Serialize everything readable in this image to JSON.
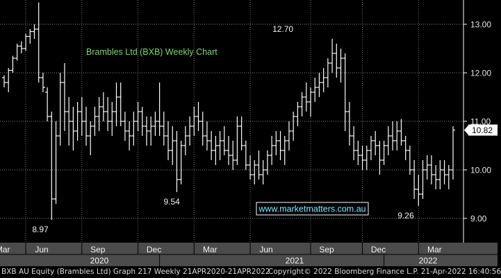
{
  "chart_data": {
    "type": "ohlc",
    "title": "Brambles Ltd (BXB) Weekly Chart",
    "ylim": [
      8.5,
      13.5
    ],
    "y_ticks": [
      9.0,
      10.0,
      11.0,
      12.0,
      13.0
    ],
    "y_tick_labels": [
      "9.00",
      "10.00",
      "11.00",
      "12.00",
      "13.00"
    ],
    "last_price": "10.82",
    "watermark": "www.marketmatters.com.au",
    "annotations": [
      {
        "label": "8.97",
        "value": 8.97
      },
      {
        "label": "9.54",
        "value": 9.54
      },
      {
        "label": "12.70",
        "value": 12.7
      },
      {
        "label": "9.26",
        "value": 9.26
      }
    ],
    "x_month_labels": [
      "Mar",
      "Jun",
      "Sep",
      "Dec",
      "Mar",
      "Jun",
      "Sep",
      "Dec",
      "Mar"
    ],
    "x_year_labels": [
      "2020",
      "2021",
      "2022"
    ],
    "x": [
      "2020-04-24",
      "2020-05-01",
      "2020-05-08",
      "2020-05-15",
      "2020-05-22",
      "2020-05-29",
      "2020-06-05",
      "2020-06-12",
      "2020-06-19",
      "2020-06-26",
      "2020-07-03",
      "2020-07-10",
      "2020-07-17",
      "2020-07-24",
      "2020-07-31",
      "2020-08-07",
      "2020-08-14",
      "2020-08-21",
      "2020-08-28",
      "2020-09-04",
      "2020-09-11",
      "2020-09-18",
      "2020-09-25",
      "2020-10-02",
      "2020-10-09",
      "2020-10-16",
      "2020-10-23",
      "2020-10-30",
      "2020-11-06",
      "2020-11-13",
      "2020-11-20",
      "2020-11-27",
      "2020-12-04",
      "2020-12-11",
      "2020-12-18",
      "2020-12-25",
      "2021-01-01",
      "2021-01-08",
      "2021-01-15",
      "2021-01-22",
      "2021-01-29",
      "2021-02-05",
      "2021-02-12",
      "2021-02-19",
      "2021-02-26",
      "2021-03-05",
      "2021-03-12",
      "2021-03-19",
      "2021-03-26",
      "2021-04-02",
      "2021-04-09",
      "2021-04-16",
      "2021-04-23",
      "2021-04-30",
      "2021-05-07",
      "2021-05-14",
      "2021-05-21",
      "2021-05-28",
      "2021-06-04",
      "2021-06-11",
      "2021-06-18",
      "2021-06-25",
      "2021-07-02",
      "2021-07-09",
      "2021-07-16",
      "2021-07-23",
      "2021-07-30",
      "2021-08-06",
      "2021-08-13",
      "2021-08-20",
      "2021-08-27",
      "2021-09-03",
      "2021-09-10",
      "2021-09-17",
      "2021-09-24",
      "2021-10-01",
      "2021-10-08",
      "2021-10-15",
      "2021-10-22",
      "2021-10-29",
      "2021-11-05",
      "2021-11-12",
      "2021-11-19",
      "2021-11-26",
      "2021-12-03",
      "2021-12-10",
      "2021-12-17",
      "2021-12-24",
      "2021-12-31",
      "2022-01-07",
      "2022-01-14",
      "2022-01-21",
      "2022-01-28",
      "2022-02-04",
      "2022-02-11",
      "2022-02-18",
      "2022-02-25",
      "2022-03-04",
      "2022-03-11",
      "2022-03-18",
      "2022-03-25",
      "2022-04-01",
      "2022-04-08",
      "2022-04-15",
      "2022-04-21"
    ],
    "ohlc": [
      [
        11.9,
        11.95,
        11.7,
        11.8
      ],
      [
        11.8,
        12.1,
        11.6,
        12.05
      ],
      [
        12.05,
        12.35,
        12.0,
        12.3
      ],
      [
        12.3,
        12.6,
        12.25,
        12.55
      ],
      [
        12.55,
        12.65,
        12.4,
        12.5
      ],
      [
        12.5,
        12.8,
        12.45,
        12.75
      ],
      [
        12.75,
        12.9,
        12.6,
        12.85
      ],
      [
        12.85,
        13.0,
        12.7,
        12.9
      ],
      [
        12.9,
        13.45,
        11.8,
        11.9
      ],
      [
        11.9,
        12.0,
        11.6,
        11.7
      ],
      [
        11.6,
        11.7,
        11.0,
        11.1
      ],
      [
        11.1,
        11.2,
        8.97,
        9.4
      ],
      [
        9.4,
        11.0,
        9.3,
        10.7
      ],
      [
        10.7,
        12.0,
        10.5,
        11.8
      ],
      [
        11.8,
        12.2,
        10.8,
        11.2
      ],
      [
        11.2,
        11.5,
        10.5,
        11.0
      ],
      [
        11.0,
        11.3,
        10.4,
        10.8
      ],
      [
        10.8,
        11.4,
        10.6,
        11.2
      ],
      [
        11.2,
        11.5,
        10.7,
        11.0
      ],
      [
        11.0,
        11.3,
        10.5,
        10.7
      ],
      [
        10.7,
        11.0,
        10.3,
        10.9
      ],
      [
        10.9,
        11.3,
        10.7,
        11.1
      ],
      [
        11.1,
        11.5,
        10.8,
        11.3
      ],
      [
        11.3,
        11.6,
        11.0,
        11.2
      ],
      [
        11.2,
        11.5,
        10.8,
        11.0
      ],
      [
        11.0,
        11.4,
        10.7,
        11.2
      ],
      [
        11.2,
        11.8,
        10.9,
        11.5
      ],
      [
        11.5,
        11.8,
        10.9,
        11.0
      ],
      [
        11.0,
        11.2,
        10.6,
        10.8
      ],
      [
        10.8,
        11.0,
        10.4,
        10.7
      ],
      [
        10.7,
        11.2,
        10.5,
        11.0
      ],
      [
        11.0,
        11.4,
        10.8,
        11.2
      ],
      [
        11.2,
        11.3,
        10.7,
        10.9
      ],
      [
        10.9,
        11.1,
        10.5,
        10.8
      ],
      [
        10.8,
        11.1,
        10.5,
        10.9
      ],
      [
        10.9,
        11.2,
        10.7,
        11.0
      ],
      [
        11.0,
        11.8,
        10.7,
        10.9
      ],
      [
        10.9,
        11.2,
        10.5,
        10.7
      ],
      [
        10.7,
        11.0,
        10.2,
        10.4
      ],
      [
        10.4,
        10.9,
        10.1,
        10.6
      ],
      [
        10.6,
        10.8,
        9.54,
        9.8
      ],
      [
        9.8,
        10.6,
        9.7,
        10.5
      ],
      [
        10.5,
        10.9,
        10.3,
        10.7
      ],
      [
        10.7,
        11.1,
        10.5,
        10.9
      ],
      [
        10.9,
        11.3,
        10.7,
        11.1
      ],
      [
        11.1,
        11.4,
        10.8,
        11.0
      ],
      [
        11.0,
        11.2,
        10.5,
        10.7
      ],
      [
        10.7,
        11.0,
        10.4,
        10.6
      ],
      [
        10.6,
        10.8,
        10.2,
        10.4
      ],
      [
        10.4,
        10.7,
        10.1,
        10.5
      ],
      [
        10.5,
        10.8,
        10.2,
        10.6
      ],
      [
        10.6,
        10.9,
        10.3,
        10.4
      ],
      [
        10.4,
        10.7,
        10.1,
        10.3
      ],
      [
        10.3,
        10.6,
        10.0,
        10.2
      ],
      [
        10.2,
        11.1,
        10.1,
        10.9
      ],
      [
        10.9,
        11.1,
        10.4,
        10.5
      ],
      [
        10.5,
        10.6,
        10.0,
        10.1
      ],
      [
        10.1,
        10.3,
        9.8,
        9.9
      ],
      [
        9.9,
        10.2,
        9.7,
        10.1
      ],
      [
        10.1,
        10.4,
        9.8,
        9.9
      ],
      [
        9.9,
        10.2,
        9.7,
        10.0
      ],
      [
        10.0,
        10.4,
        9.9,
        10.3
      ],
      [
        10.3,
        10.7,
        10.1,
        10.5
      ],
      [
        10.5,
        10.8,
        10.3,
        10.6
      ],
      [
        10.6,
        10.8,
        10.2,
        10.4
      ],
      [
        10.4,
        10.7,
        10.1,
        10.6
      ],
      [
        10.6,
        11.0,
        10.4,
        10.8
      ],
      [
        10.8,
        11.2,
        10.6,
        11.1
      ],
      [
        11.1,
        11.4,
        10.9,
        11.3
      ],
      [
        11.3,
        11.6,
        11.1,
        11.5
      ],
      [
        11.5,
        11.8,
        11.2,
        11.4
      ],
      [
        11.4,
        11.7,
        11.1,
        11.6
      ],
      [
        11.6,
        11.9,
        11.4,
        11.7
      ],
      [
        11.7,
        12.0,
        11.5,
        11.8
      ],
      [
        11.8,
        12.1,
        11.6,
        11.9
      ],
      [
        11.9,
        12.3,
        11.7,
        12.2
      ],
      [
        12.2,
        12.7,
        12.0,
        12.4
      ],
      [
        12.4,
        12.6,
        11.9,
        12.1
      ],
      [
        12.1,
        12.5,
        11.8,
        12.3
      ],
      [
        12.3,
        12.4,
        10.8,
        11.2
      ],
      [
        11.2,
        11.4,
        10.5,
        10.7
      ],
      [
        10.7,
        10.9,
        10.2,
        10.4
      ],
      [
        10.4,
        10.6,
        10.1,
        10.3
      ],
      [
        10.3,
        10.5,
        10.0,
        10.2
      ],
      [
        10.2,
        10.5,
        10.0,
        10.4
      ],
      [
        10.4,
        10.7,
        10.2,
        10.6
      ],
      [
        10.6,
        10.8,
        10.3,
        10.5
      ],
      [
        10.5,
        10.6,
        9.9,
        10.2
      ],
      [
        10.2,
        10.6,
        10.1,
        10.5
      ],
      [
        10.5,
        10.9,
        10.3,
        10.7
      ],
      [
        10.7,
        11.0,
        10.4,
        10.6
      ],
      [
        10.6,
        11.0,
        10.4,
        10.8
      ],
      [
        10.8,
        11.05,
        10.5,
        10.6
      ],
      [
        10.6,
        10.7,
        10.2,
        10.4
      ],
      [
        10.4,
        10.5,
        9.9,
        10.0
      ],
      [
        10.0,
        10.2,
        9.4,
        9.6
      ],
      [
        9.6,
        9.9,
        9.26,
        9.5
      ],
      [
        9.5,
        10.2,
        9.4,
        10.0
      ],
      [
        10.0,
        10.3,
        9.8,
        10.1
      ],
      [
        10.1,
        10.3,
        9.7,
        9.9
      ],
      [
        9.9,
        10.1,
        9.6,
        9.8
      ],
      [
        9.8,
        10.2,
        9.6,
        10.0
      ],
      [
        10.0,
        10.2,
        9.7,
        9.9
      ],
      [
        9.9,
        10.1,
        9.6,
        10.0
      ],
      [
        10.0,
        10.9,
        9.8,
        10.82
      ]
    ]
  },
  "footer": {
    "left": "BXB AU Equity (Brambles Ltd) Graph 217  Weekly 21APR2020-21APR2022",
    "right": "Copyright© 2022 Bloomberg Finance L.P.   21-Apr-2022 16:40:56"
  }
}
